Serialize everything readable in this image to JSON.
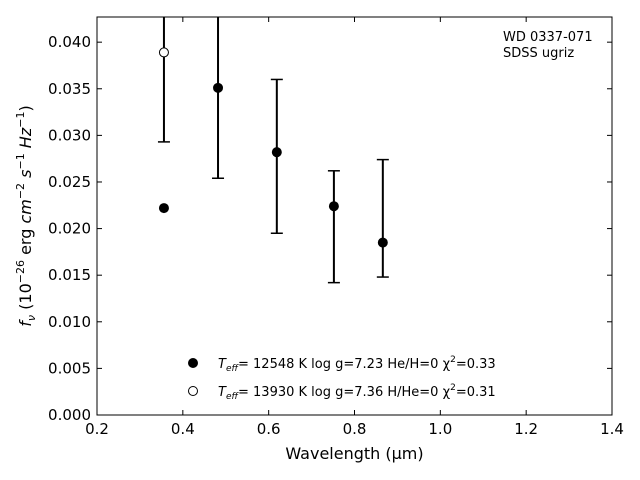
{
  "chart_data": {
    "type": "scatter",
    "title": "",
    "annotation": [
      "WD 0337-071",
      "SDSS ugriz"
    ],
    "xlabel": "Wavelength (μm)",
    "ylabel": "f_ν (10^−26 erg cm^−2 s^−1 Hz^−1)",
    "xlim": [
      0.2,
      1.4
    ],
    "ylim": [
      0.0,
      0.0427
    ],
    "x_ticks": [
      0.2,
      0.4,
      0.6,
      0.8,
      1.0,
      1.2,
      1.4
    ],
    "x_tick_labels": [
      "0.2",
      "0.4",
      "0.6",
      "0.8",
      "1.0",
      "1.2",
      "1.4"
    ],
    "y_ticks": [
      0.0,
      0.005,
      0.01,
      0.015,
      0.02,
      0.025,
      0.03,
      0.035,
      0.04
    ],
    "y_tick_labels": [
      "0.000",
      "0.005",
      "0.010",
      "0.015",
      "0.020",
      "0.025",
      "0.030",
      "0.035",
      "0.040"
    ],
    "grid": false,
    "legend_position": "bottom-center",
    "observed": {
      "name": "SDSS ugriz",
      "x": [
        0.356,
        0.482,
        0.619,
        0.752,
        0.866
      ],
      "y": [
        0.0389,
        0.0351,
        0.0282,
        0.0224,
        0.0185
      ],
      "y_lower": [
        0.0293,
        0.0254,
        0.0195,
        0.0142,
        0.0148
      ],
      "y_upper": [
        0.0427,
        0.0427,
        0.036,
        0.0262,
        0.0274
      ],
      "marker": "none",
      "color": "#000000"
    },
    "series": [
      {
        "label_parts": {
          "tsym": "T",
          "tsub": "eff",
          "rest": "= 12548 K  log g=7.23  He/H=0  χ",
          "sup": "2",
          "end": "=0.33"
        },
        "marker": "filled-circle",
        "color": "#000000",
        "x": [
          0.356,
          0.482,
          0.619,
          0.752,
          0.866
        ],
        "y": [
          0.0222,
          0.0351,
          0.0282,
          0.0224,
          0.0185
        ]
      },
      {
        "label_parts": {
          "tsym": "T",
          "tsub": "eff",
          "rest": "= 13930 K  log g=7.36  H/He=0  χ",
          "sup": "2",
          "end": "=0.31"
        },
        "marker": "open-circle",
        "color": "#000000",
        "x": [
          0.356
        ],
        "y": [
          0.0389
        ]
      }
    ]
  }
}
